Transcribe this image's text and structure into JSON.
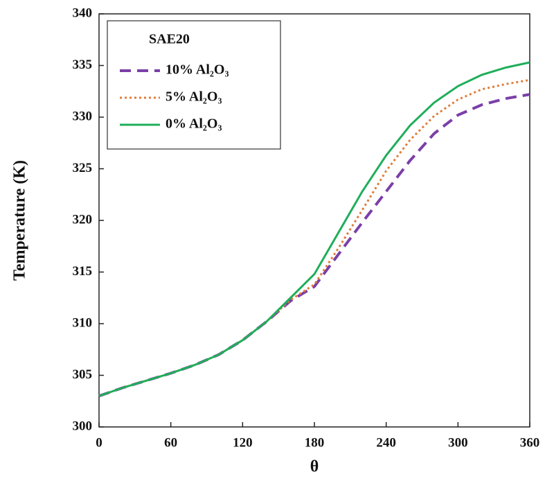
{
  "chart_data": {
    "type": "line",
    "x_label": "θ",
    "y_label": "Temperature (K)",
    "legend_title": "SAE20",
    "legend": "upper left",
    "x": [
      0,
      20,
      40,
      60,
      80,
      100,
      120,
      140,
      160,
      180,
      200,
      220,
      240,
      260,
      280,
      300,
      320,
      340,
      360
    ],
    "series": [
      {
        "name": "10% Al₂O₃",
        "color": "#7b3fa8",
        "linestyle": "dashed",
        "values": [
          303.0,
          303.8,
          304.5,
          305.2,
          306.0,
          307.0,
          308.4,
          310.2,
          312.2,
          313.6,
          316.7,
          319.8,
          322.8,
          325.8,
          328.4,
          330.2,
          331.2,
          331.8,
          332.2
        ]
      },
      {
        "name": "5% Al₂O₃",
        "color": "#e07b39",
        "linestyle": "dotted",
        "values": [
          303.0,
          303.8,
          304.5,
          305.2,
          306.0,
          307.0,
          308.4,
          310.2,
          312.3,
          313.8,
          317.3,
          321.0,
          324.8,
          327.8,
          330.1,
          331.7,
          332.7,
          333.2,
          333.6
        ]
      },
      {
        "name": "0% Al₂O₃",
        "color": "#1fae5a",
        "linestyle": "solid",
        "values": [
          303.0,
          303.8,
          304.5,
          305.2,
          306.0,
          307.0,
          308.4,
          310.2,
          312.5,
          314.8,
          318.8,
          322.8,
          326.3,
          329.2,
          331.4,
          333.0,
          334.1,
          334.8,
          335.3
        ]
      }
    ],
    "xlim": [
      0,
      360
    ],
    "xticks": [
      0,
      60,
      120,
      180,
      240,
      300,
      360
    ],
    "ylim": [
      300,
      340
    ],
    "yticks": [
      300,
      305,
      310,
      315,
      320,
      325,
      330,
      335,
      340
    ]
  }
}
